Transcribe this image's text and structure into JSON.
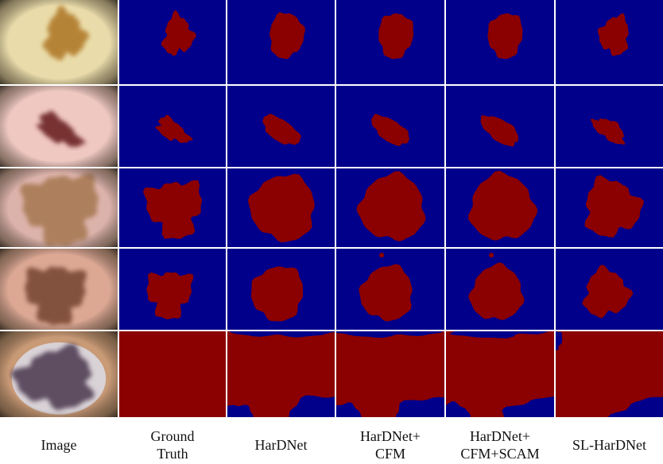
{
  "columns": [
    {
      "label_lines": [
        "Image"
      ]
    },
    {
      "label_lines": [
        "Ground",
        "Truth"
      ]
    },
    {
      "label_lines": [
        "HarDNet"
      ]
    },
    {
      "label_lines": [
        "HarDNet+",
        "CFM"
      ]
    },
    {
      "label_lines": [
        "HarDNet+",
        "CFM+SCAM"
      ]
    },
    {
      "label_lines": [
        "SL-HarDNet"
      ]
    }
  ]
}
